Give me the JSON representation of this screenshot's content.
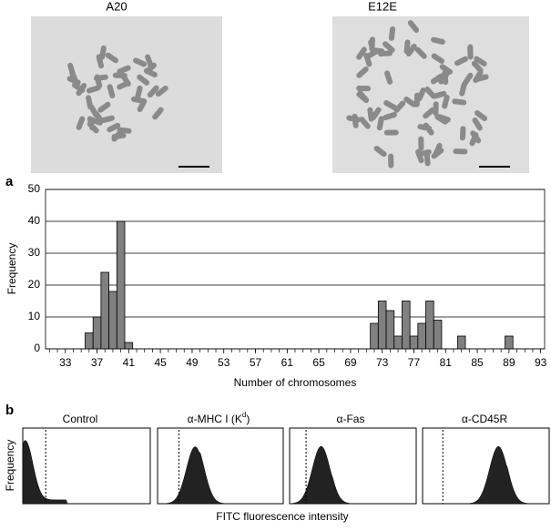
{
  "figure": {
    "panel_a": "a",
    "panel_b": "b",
    "image_labels": [
      "A20",
      "E12E"
    ],
    "flow_labels": [
      "Control",
      "α-MHC I (K",
      "α-Fas",
      "α-CD45R"
    ],
    "flow_label_sup": "d",
    "flow_label_close": ")",
    "flow_ylabel": "Frequency",
    "flow_xlabel": "FITC fluorescence intensity"
  },
  "chart_data": {
    "type": "bar",
    "xlabel": "Number of chromosomes",
    "ylabel": "Frequency",
    "x": [
      36,
      37,
      38,
      39,
      40,
      41,
      72,
      73,
      74,
      75,
      76,
      77,
      78,
      79,
      80,
      83,
      89
    ],
    "values": [
      5,
      10,
      24,
      18,
      40,
      2,
      8,
      15,
      12,
      4,
      15,
      4,
      8,
      15,
      9,
      4,
      4
    ],
    "color": "#808080",
    "xlim": [
      30.5,
      93.5
    ],
    "xticks": [
      33,
      37,
      41,
      45,
      49,
      53,
      57,
      61,
      65,
      69,
      73,
      77,
      81,
      85,
      89,
      93
    ],
    "ylim": [
      0,
      50
    ],
    "yticks": [
      0,
      10,
      20,
      30,
      40,
      50
    ],
    "grid": true
  }
}
